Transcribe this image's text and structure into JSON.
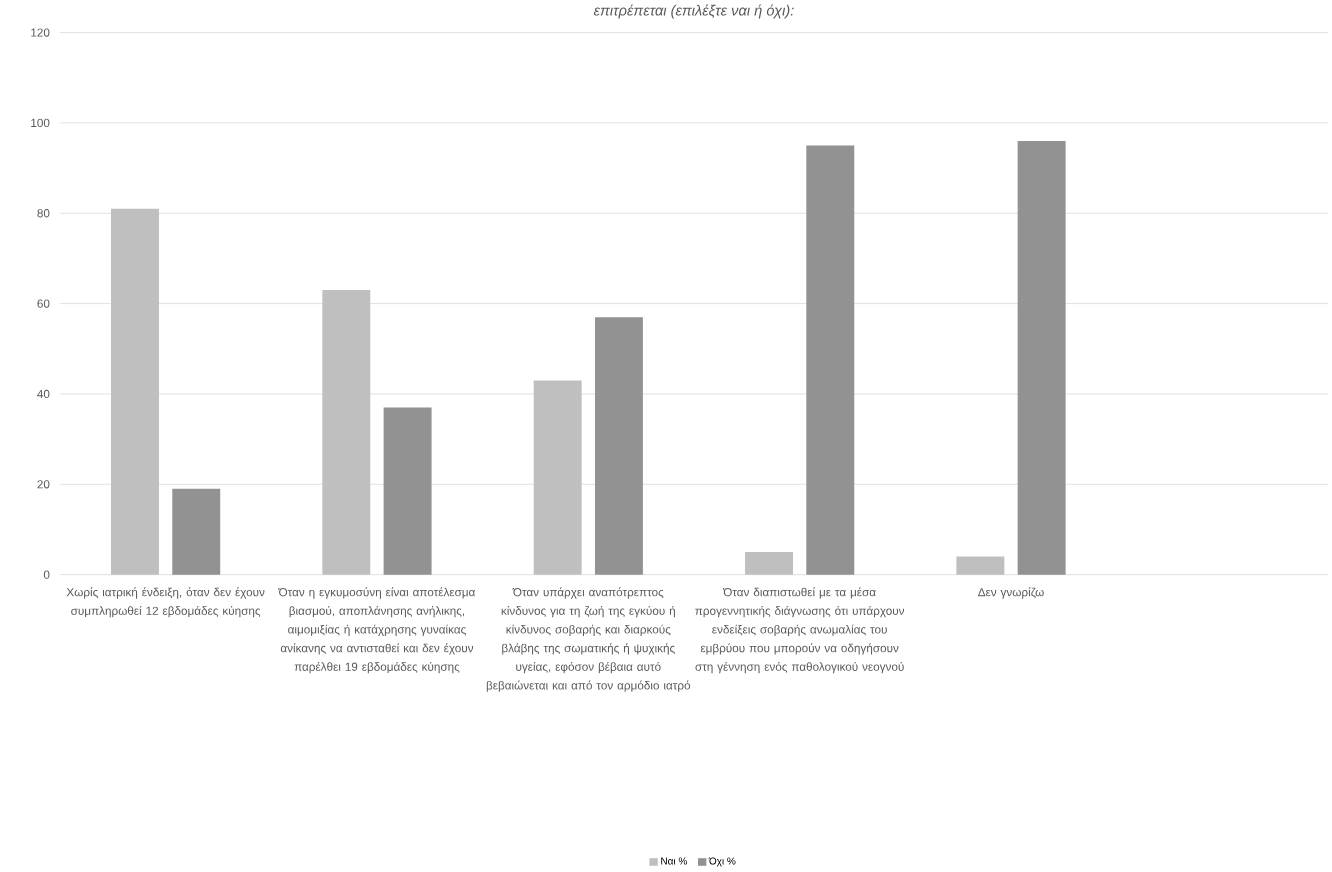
{
  "chart_data": {
    "type": "bar",
    "title": "επιτρέπεται (επιλέξτε ναι ή όχι):",
    "categories": [
      "Χωρίς ιατρική ένδειξη, όταν δεν έχουν συμπληρωθεί 12 εβδομάδες κύησης",
      "Όταν η εγκυμοσύνη είναι αποτέλεσμα βιασμού, αποπλάνησης ανήλικης, αιμομιξίας ή κατάχρησης γυναίκας ανίκανης να αντισταθεί και δεν έχουν παρέλθει 19 εβδομάδες κύησης",
      "Όταν υπάρχει αναπότρεπτος κίνδυνος για τη ζωή της εγκύου ή κίνδυνος σοβαρής και διαρκούς βλάβης της σωματικής ή ψυχικής υγείας, εφόσον βέβαια αυτό βεβαιώνεται και από τον αρμόδιο ιατρό",
      "Όταν διαπιστωθεί με τα μέσα προγεννητικής διάγνωσης ότι υπάρχουν ενδείξεις σοβαρής ανωμαλίας του εμβρύου που μπορούν να οδηγήσουν στη γέννηση ενός παθολογικού νεογνού",
      "Δεν γνωρίζω",
      null
    ],
    "series": [
      {
        "name": "Ναι %",
        "color": "#bfbfbf",
        "values": [
          81,
          63,
          43,
          5,
          4,
          null
        ]
      },
      {
        "name": "Όχι %",
        "color": "#929292",
        "values": [
          19,
          37,
          57,
          95,
          96,
          null
        ]
      }
    ],
    "ylim": [
      0,
      120
    ],
    "yticks": [
      0,
      20,
      40,
      60,
      80,
      100,
      120
    ],
    "grid": "y",
    "legend": "bottom"
  }
}
